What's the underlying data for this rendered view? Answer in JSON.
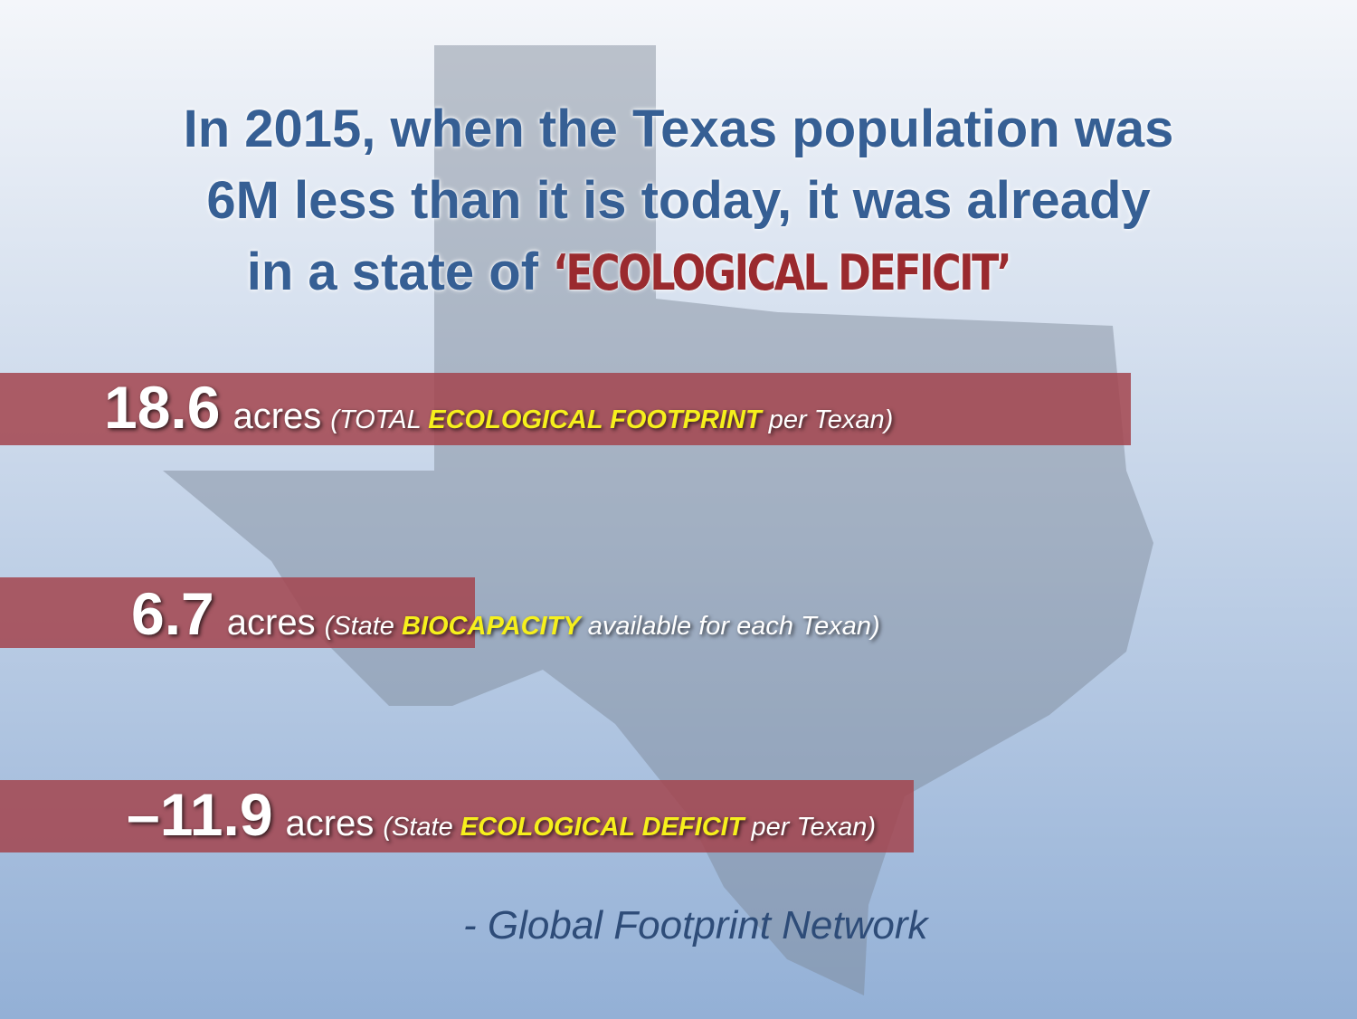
{
  "title": {
    "lines": [
      "In 2015, when the Texas population was",
      "6M less than it is today, it was already",
      "in a state of "
    ],
    "highlight": "‘ECOLOGICAL DEFICIT’"
  },
  "rows": [
    {
      "value": "18.6",
      "unit": "acres",
      "note_prefix": "(TOTAL ",
      "note_highlight": "ECOLOGICAL FOOTPRINT",
      "note_suffix": " per Texan)"
    },
    {
      "value": "6.7",
      "unit": "acres",
      "note_prefix": "(State ",
      "note_highlight": "BIOCAPACITY",
      "note_suffix": " available for each Texan)"
    },
    {
      "value": "–11.9",
      "unit": "acres",
      "note_prefix": "(State ",
      "note_highlight": "ECOLOGICAL DEFICIT",
      "note_suffix": " per Texan)"
    }
  ],
  "source": "- Global Footprint Network"
}
